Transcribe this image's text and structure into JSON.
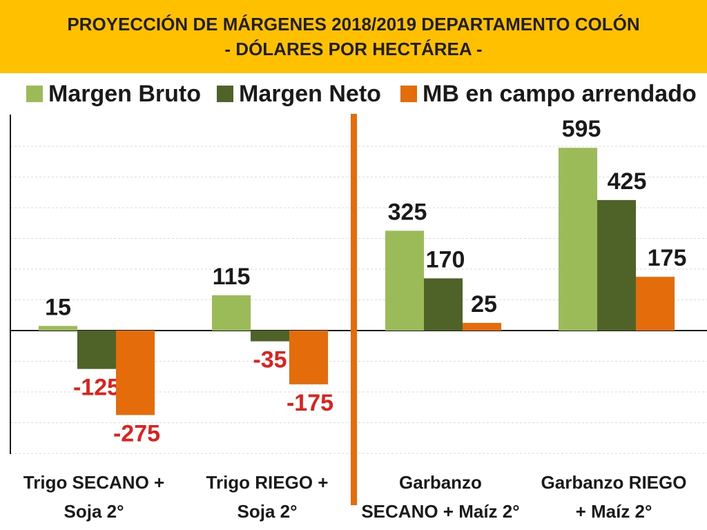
{
  "header": {
    "title_line1": "PROYECCIÓN DE MÁRGENES 2018/2019 DEPARTAMENTO COLÓN",
    "title_line2": "- DÓLARES POR HECTÁREA -"
  },
  "colors": {
    "header_bg": "#FFC000",
    "margen_bruto": "#9BBB59",
    "margen_neto": "#4F6228",
    "mb_arrendado": "#E46C0A",
    "negative_label": "#E0201B",
    "positive_label": "#1a1a1a",
    "divider": "#E46C0A"
  },
  "chart_data": {
    "type": "bar",
    "title": "PROYECCIÓN DE MÁRGENES 2018/2019 DEPARTAMENTO COLÓN - DÓLARES POR HECTÁREA -",
    "categories": [
      [
        "Trigo SECANO +",
        "Soja 2°"
      ],
      [
        "Trigo RIEGO +",
        "Soja 2°"
      ],
      [
        "Garbanzo",
        "SECANO + Maíz 2°"
      ],
      [
        "Garbanzo RIEGO",
        "+ Maíz 2°"
      ]
    ],
    "series": [
      {
        "name": "Margen Bruto",
        "values": [
          15,
          115,
          325,
          595
        ],
        "color": "#9BBB59"
      },
      {
        "name": "Margen Neto",
        "values": [
          -125,
          -35,
          170,
          425
        ],
        "color": "#4F6228"
      },
      {
        "name": "MB en campo arrendado",
        "values": [
          -275,
          -175,
          25,
          175
        ],
        "color": "#E46C0A"
      }
    ],
    "ylim": [
      -400,
      600
    ],
    "grid": true,
    "legend": "top",
    "divider_after_category": 1
  }
}
